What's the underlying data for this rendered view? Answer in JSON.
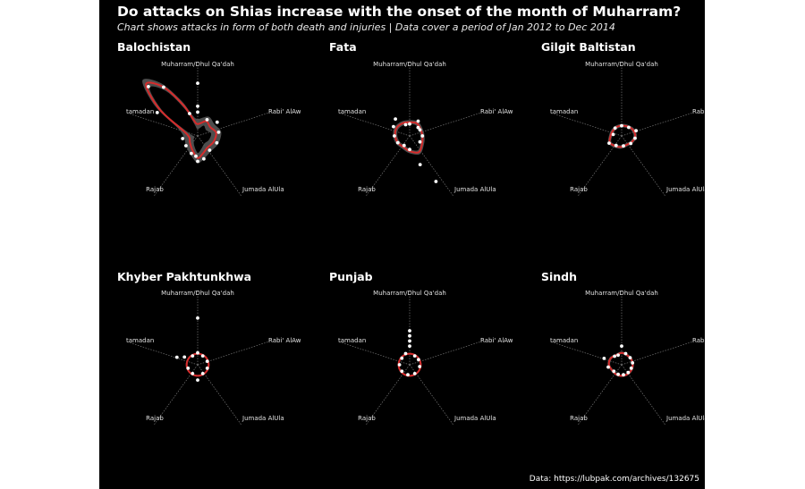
{
  "title": "Do attacks on Shias increase with the onset of the month of Muharram?",
  "subtitle": "Chart shows attacks in form of both death and injuries | Data cover a period of Jan 2012  to Dec 2014",
  "source": "Data: https://lubpak.com/archives/132675",
  "colors": {
    "background": "#000000",
    "smooth_line": "#d62b2b",
    "ribbon": "#555555",
    "points": "#ffffff",
    "axis": "#777777"
  },
  "chart_data": {
    "type": "scatter",
    "coordinate_system": "polar",
    "axis_labels": [
      "Muharram/Dhul Qa'dah",
      "Rabi' AlAw",
      "Jumada AlUla",
      "Rajab",
      "Ramadan"
    ],
    "axis_labels_display": [
      "Muharram/Dhul Qa'dah",
      "Rabi' AlAw",
      "Jumada AlUla",
      "Rajab",
      "tamadan"
    ],
    "grid": true,
    "facets": [
      {
        "name": "Balochistan",
        "points": [
          [
            0,
            0.62
          ],
          [
            0,
            0.35
          ],
          [
            0,
            0.28
          ],
          [
            30,
            0.22
          ],
          [
            55,
            0.28
          ],
          [
            80,
            0.25
          ],
          [
            110,
            0.24
          ],
          [
            140,
            0.22
          ],
          [
            165,
            0.28
          ],
          [
            180,
            0.3
          ],
          [
            185,
            0.24
          ],
          [
            200,
            0.22
          ],
          [
            230,
            0.18
          ],
          [
            260,
            0.18
          ],
          [
            300,
            0.55
          ],
          [
            315,
            0.82
          ],
          [
            325,
            0.7
          ],
          [
            340,
            0.28
          ]
        ],
        "smooth": [
          [
            0,
            0.14
          ],
          [
            30,
            0.2
          ],
          [
            55,
            0.18
          ],
          [
            80,
            0.22
          ],
          [
            110,
            0.2
          ],
          [
            140,
            0.18
          ],
          [
            165,
            0.22
          ],
          [
            180,
            0.26
          ],
          [
            200,
            0.18
          ],
          [
            230,
            0.12
          ],
          [
            260,
            0.1
          ],
          [
            290,
            0.18
          ],
          [
            305,
            0.55
          ],
          [
            315,
            0.86
          ],
          [
            325,
            0.7
          ],
          [
            335,
            0.4
          ],
          [
            345,
            0.2
          ]
        ],
        "band": 0.06
      },
      {
        "name": "Fata",
        "points": [
          [
            0,
            0.14
          ],
          [
            30,
            0.2
          ],
          [
            45,
            0.14
          ],
          [
            60,
            0.14
          ],
          [
            90,
            0.15
          ],
          [
            120,
            0.14
          ],
          [
            150,
            0.62
          ],
          [
            160,
            0.36
          ],
          [
            180,
            0.16
          ],
          [
            210,
            0.13
          ],
          [
            240,
            0.16
          ],
          [
            270,
            0.18
          ],
          [
            300,
            0.22
          ],
          [
            320,
            0.26
          ],
          [
            340,
            0.14
          ]
        ],
        "smooth": [
          [
            0,
            0.16
          ],
          [
            30,
            0.17
          ],
          [
            60,
            0.15
          ],
          [
            90,
            0.15
          ],
          [
            120,
            0.17
          ],
          [
            150,
            0.22
          ],
          [
            180,
            0.18
          ],
          [
            210,
            0.15
          ],
          [
            240,
            0.16
          ],
          [
            270,
            0.17
          ],
          [
            300,
            0.18
          ],
          [
            330,
            0.17
          ]
        ],
        "band": 0.025
      },
      {
        "name": "Gilgit Baltistan",
        "points": [
          [
            0,
            0.12
          ],
          [
            40,
            0.13
          ],
          [
            70,
            0.18
          ],
          [
            100,
            0.16
          ],
          [
            130,
            0.14
          ],
          [
            170,
            0.12
          ],
          [
            210,
            0.13
          ],
          [
            240,
            0.17
          ],
          [
            280,
            0.1
          ],
          [
            320,
            0.12
          ]
        ],
        "smooth": [
          [
            0,
            0.12
          ],
          [
            30,
            0.13
          ],
          [
            60,
            0.15
          ],
          [
            90,
            0.16
          ],
          [
            120,
            0.14
          ],
          [
            150,
            0.12
          ],
          [
            180,
            0.13
          ],
          [
            210,
            0.14
          ],
          [
            240,
            0.16
          ],
          [
            270,
            0.13
          ],
          [
            300,
            0.12
          ],
          [
            330,
            0.12
          ]
        ],
        "band": 0.02
      },
      {
        "name": "Khyber Pakhtunkhwa",
        "points": [
          [
            0,
            0.55
          ],
          [
            0,
            0.14
          ],
          [
            30,
            0.12
          ],
          [
            70,
            0.12
          ],
          [
            110,
            0.12
          ],
          [
            150,
            0.12
          ],
          [
            180,
            0.18
          ],
          [
            210,
            0.12
          ],
          [
            250,
            0.12
          ],
          [
            290,
            0.26
          ],
          [
            300,
            0.18
          ],
          [
            330,
            0.12
          ]
        ],
        "smooth": [
          [
            0,
            0.13
          ],
          [
            30,
            0.13
          ],
          [
            60,
            0.13
          ],
          [
            90,
            0.13
          ],
          [
            120,
            0.13
          ],
          [
            150,
            0.13
          ],
          [
            180,
            0.13
          ],
          [
            210,
            0.13
          ],
          [
            240,
            0.13
          ],
          [
            270,
            0.13
          ],
          [
            300,
            0.13
          ],
          [
            330,
            0.13
          ]
        ],
        "band": 0.01
      },
      {
        "name": "Punjab",
        "points": [
          [
            0,
            0.4
          ],
          [
            0,
            0.34
          ],
          [
            0,
            0.28
          ],
          [
            0,
            0.22
          ],
          [
            30,
            0.12
          ],
          [
            60,
            0.12
          ],
          [
            100,
            0.12
          ],
          [
            150,
            0.12
          ],
          [
            190,
            0.12
          ],
          [
            230,
            0.12
          ],
          [
            270,
            0.12
          ],
          [
            310,
            0.12
          ],
          [
            340,
            0.14
          ]
        ],
        "smooth": [
          [
            0,
            0.13
          ],
          [
            30,
            0.13
          ],
          [
            60,
            0.13
          ],
          [
            90,
            0.13
          ],
          [
            120,
            0.13
          ],
          [
            150,
            0.13
          ],
          [
            180,
            0.13
          ],
          [
            210,
            0.13
          ],
          [
            240,
            0.13
          ],
          [
            270,
            0.13
          ],
          [
            300,
            0.13
          ],
          [
            330,
            0.13
          ]
        ],
        "band": 0.01
      },
      {
        "name": "Sindh",
        "points": [
          [
            0,
            0.22
          ],
          [
            20,
            0.14
          ],
          [
            50,
            0.13
          ],
          [
            80,
            0.13
          ],
          [
            110,
            0.12
          ],
          [
            140,
            0.12
          ],
          [
            170,
            0.12
          ],
          [
            200,
            0.12
          ],
          [
            230,
            0.12
          ],
          [
            260,
            0.16
          ],
          [
            290,
            0.22
          ],
          [
            320,
            0.13
          ],
          [
            340,
            0.12
          ]
        ],
        "smooth": [
          [
            0,
            0.14
          ],
          [
            30,
            0.13
          ],
          [
            60,
            0.13
          ],
          [
            90,
            0.13
          ],
          [
            120,
            0.13
          ],
          [
            150,
            0.13
          ],
          [
            180,
            0.13
          ],
          [
            210,
            0.13
          ],
          [
            240,
            0.13
          ],
          [
            270,
            0.15
          ],
          [
            300,
            0.15
          ],
          [
            330,
            0.13
          ]
        ],
        "band": 0.015
      }
    ]
  }
}
